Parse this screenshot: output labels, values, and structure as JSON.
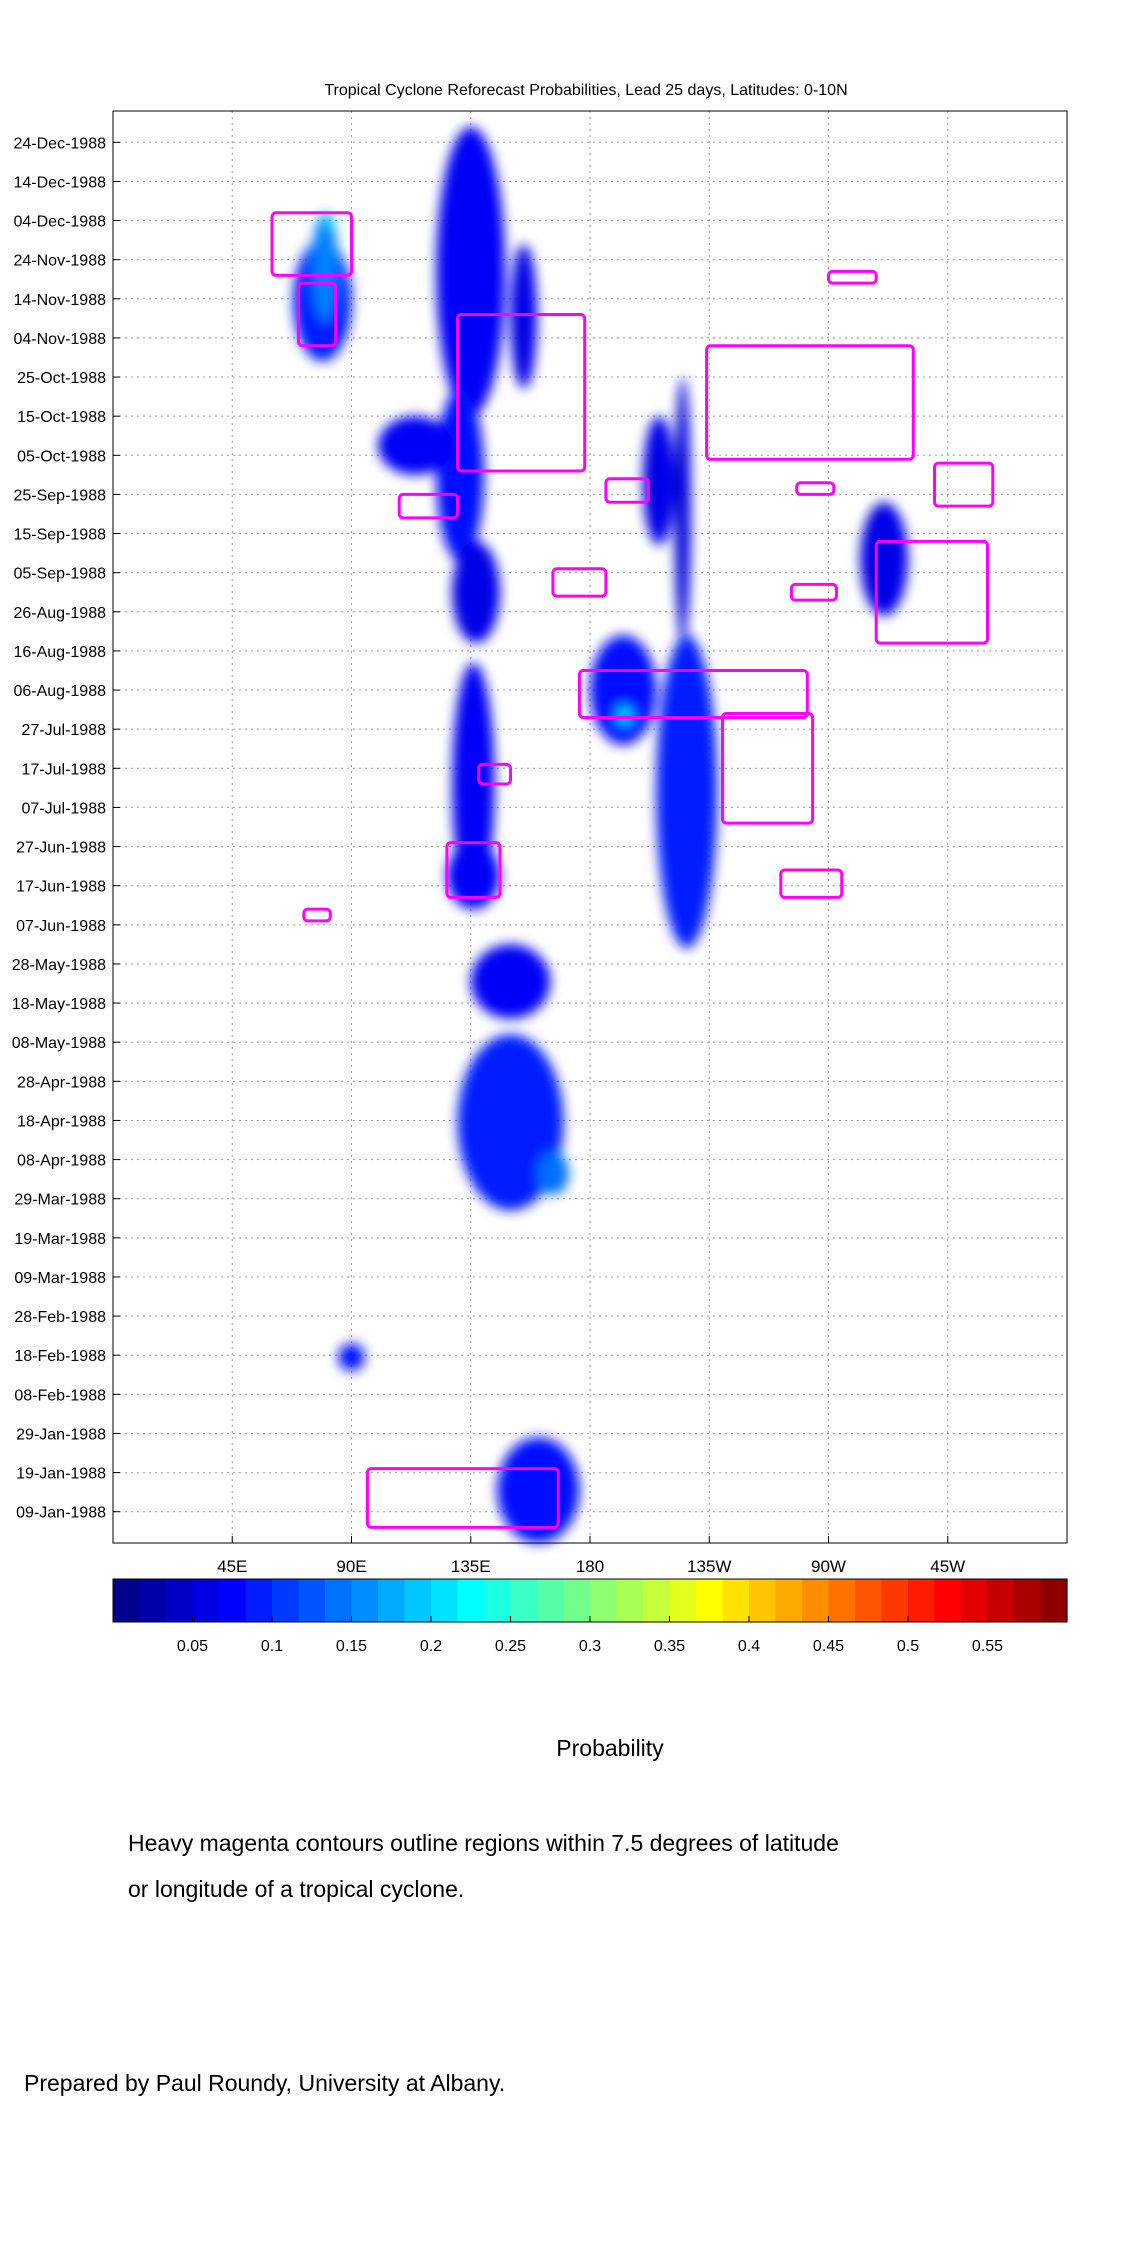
{
  "title": "Tropical Cyclone Reforecast Probabilities, Lead 25 days, Latitudes: 0-10N",
  "colorbar_label": "Probability",
  "caption_lines": [
    "Heavy magenta contours outline regions within 7.5 degrees of latitude",
    "or longitude of a tropical cyclone."
  ],
  "credit": "Prepared by Paul Roundy, University at Albany.",
  "colors": {
    "contour": "#ff00ff",
    "background": "#ffffff"
  },
  "chart_data": {
    "type": "heatmap",
    "title": "Tropical Cyclone Reforecast Probabilities, Lead 25 days, Latitudes: 0-10N",
    "xlabel": "",
    "ylabel": "",
    "x_axis": {
      "unit": "degrees longitude east",
      "range": [
        0,
        360
      ],
      "direction": "increasing east"
    },
    "y_axis": {
      "unit": "date",
      "range": [
        "1988-01-01",
        "1989-01-01"
      ],
      "direction": "later dates at top"
    },
    "x_ticks": [
      {
        "lon": 45,
        "label": "45E"
      },
      {
        "lon": 90,
        "label": "90E"
      },
      {
        "lon": 135,
        "label": "135E"
      },
      {
        "lon": 180,
        "label": "180"
      },
      {
        "lon": 225,
        "label": "135W"
      },
      {
        "lon": 270,
        "label": "90W"
      },
      {
        "lon": 315,
        "label": "45W"
      }
    ],
    "y_ticks": [
      {
        "date": "1988-12-24",
        "label": "24-Dec-1988"
      },
      {
        "date": "1988-12-14",
        "label": "14-Dec-1988"
      },
      {
        "date": "1988-12-04",
        "label": "04-Dec-1988"
      },
      {
        "date": "1988-11-24",
        "label": "24-Nov-1988"
      },
      {
        "date": "1988-11-14",
        "label": "14-Nov-1988"
      },
      {
        "date": "1988-11-04",
        "label": "04-Nov-1988"
      },
      {
        "date": "1988-10-25",
        "label": "25-Oct-1988"
      },
      {
        "date": "1988-10-15",
        "label": "15-Oct-1988"
      },
      {
        "date": "1988-10-05",
        "label": "05-Oct-1988"
      },
      {
        "date": "1988-09-25",
        "label": "25-Sep-1988"
      },
      {
        "date": "1988-09-15",
        "label": "15-Sep-1988"
      },
      {
        "date": "1988-09-05",
        "label": "05-Sep-1988"
      },
      {
        "date": "1988-08-26",
        "label": "26-Aug-1988"
      },
      {
        "date": "1988-08-16",
        "label": "16-Aug-1988"
      },
      {
        "date": "1988-08-06",
        "label": "06-Aug-1988"
      },
      {
        "date": "1988-07-27",
        "label": "27-Jul-1988"
      },
      {
        "date": "1988-07-17",
        "label": "17-Jul-1988"
      },
      {
        "date": "1988-07-07",
        "label": "07-Jul-1988"
      },
      {
        "date": "1988-06-27",
        "label": "27-Jun-1988"
      },
      {
        "date": "1988-06-17",
        "label": "17-Jun-1988"
      },
      {
        "date": "1988-06-07",
        "label": "07-Jun-1988"
      },
      {
        "date": "1988-05-28",
        "label": "28-May-1988"
      },
      {
        "date": "1988-05-18",
        "label": "18-May-1988"
      },
      {
        "date": "1988-05-08",
        "label": "08-May-1988"
      },
      {
        "date": "1988-04-28",
        "label": "28-Apr-1988"
      },
      {
        "date": "1988-04-18",
        "label": "18-Apr-1988"
      },
      {
        "date": "1988-04-08",
        "label": "08-Apr-1988"
      },
      {
        "date": "1988-03-29",
        "label": "29-Mar-1988"
      },
      {
        "date": "1988-03-19",
        "label": "19-Mar-1988"
      },
      {
        "date": "1988-03-09",
        "label": "09-Mar-1988"
      },
      {
        "date": "1988-02-28",
        "label": "28-Feb-1988"
      },
      {
        "date": "1988-02-18",
        "label": "18-Feb-1988"
      },
      {
        "date": "1988-02-08",
        "label": "08-Feb-1988"
      },
      {
        "date": "1988-01-29",
        "label": "29-Jan-1988"
      },
      {
        "date": "1988-01-19",
        "label": "19-Jan-1988"
      },
      {
        "date": "1988-01-09",
        "label": "09-Jan-1988"
      }
    ],
    "grid": true,
    "colorbar": {
      "label": "Probability",
      "range": [
        0,
        0.6
      ],
      "steps": 36,
      "ticks": [
        0.05,
        0.1,
        0.15,
        0.2,
        0.25,
        0.3,
        0.35,
        0.4,
        0.45,
        0.5,
        0.55
      ],
      "tick_labels": [
        "0.05",
        "0.1",
        "0.15",
        "0.2",
        "0.25",
        "0.3",
        "0.35",
        "0.4",
        "0.45",
        "0.5",
        "0.55"
      ],
      "colormap": "jet"
    },
    "probability_regions": [
      {
        "lon": [
          122,
          148
        ],
        "date": [
          "1988-10-15",
          "1988-12-28"
        ],
        "value": 0.07
      },
      {
        "lon": [
          150,
          160
        ],
        "date": [
          "1988-10-22",
          "1988-11-28"
        ],
        "value": 0.06
      },
      {
        "lon": [
          68,
          90
        ],
        "date": [
          "1988-10-29",
          "1988-11-29"
        ],
        "value": 0.09
      },
      {
        "lon": [
          75,
          85
        ],
        "date": [
          "1988-11-08",
          "1988-12-06"
        ],
        "value": 0.15
      },
      {
        "lon": [
          80,
          84
        ],
        "date": [
          "1988-12-02",
          "1988-12-05"
        ],
        "value": 0.2
      },
      {
        "lon": [
          122,
          140
        ],
        "date": [
          "1988-09-08",
          "1988-10-22"
        ],
        "value": 0.08
      },
      {
        "lon": [
          100,
          128
        ],
        "date": [
          "1988-09-30",
          "1988-10-15"
        ],
        "value": 0.07
      },
      {
        "lon": [
          200,
          212
        ],
        "date": [
          "1988-09-12",
          "1988-10-15"
        ],
        "value": 0.06
      },
      {
        "lon": [
          212,
          218
        ],
        "date": [
          "1988-08-18",
          "1988-10-25"
        ],
        "value": 0.05
      },
      {
        "lon": [
          282,
          300
        ],
        "date": [
          "1988-08-25",
          "1988-09-23"
        ],
        "value": 0.06
      },
      {
        "lon": [
          180,
          205
        ],
        "date": [
          "1988-07-23",
          "1988-08-20"
        ],
        "value": 0.08
      },
      {
        "lon": [
          205,
          228
        ],
        "date": [
          "1988-06-01",
          "1988-08-20"
        ],
        "value": 0.09
      },
      {
        "lon": [
          190,
          196
        ],
        "date": [
          "1988-07-28",
          "1988-08-02"
        ],
        "value": 0.2
      },
      {
        "lon": [
          128,
          146
        ],
        "date": [
          "1988-08-18",
          "1988-09-13"
        ],
        "value": 0.06
      },
      {
        "lon": [
          128,
          144
        ],
        "date": [
          "1988-06-12",
          "1988-08-13"
        ],
        "value": 0.07
      },
      {
        "lon": [
          126,
          146
        ],
        "date": [
          "1988-06-11",
          "1988-06-28"
        ],
        "value": 0.07
      },
      {
        "lon": [
          135,
          165
        ],
        "date": [
          "1988-05-14",
          "1988-06-02"
        ],
        "value": 0.07
      },
      {
        "lon": [
          130,
          170
        ],
        "date": [
          "1988-03-26",
          "1988-05-10"
        ],
        "value": 0.09
      },
      {
        "lon": [
          160,
          172
        ],
        "date": [
          "1988-03-30",
          "1988-04-10"
        ],
        "value": 0.14
      },
      {
        "lon": [
          145,
          176
        ],
        "date": [
          "1988-01-01",
          "1988-01-28"
        ],
        "value": 0.08
      },
      {
        "lon": [
          85,
          95
        ],
        "date": [
          "1988-02-14",
          "1988-02-21"
        ],
        "value": 0.08
      }
    ],
    "cyclone_contours": [
      {
        "lon": [
          96,
          168
        ],
        "date": [
          "1988-01-05",
          "1988-01-20"
        ],
        "note": "elongated diagonal contour"
      },
      {
        "lon": [
          126,
          146
        ],
        "date": [
          "1988-06-14",
          "1988-06-28"
        ]
      },
      {
        "lon": [
          138,
          150
        ],
        "date": [
          "1988-07-13",
          "1988-07-18"
        ]
      },
      {
        "lon": [
          72,
          82
        ],
        "date": [
          "1988-06-08",
          "1988-06-11"
        ]
      },
      {
        "lon": [
          176,
          262
        ],
        "date": [
          "1988-07-30",
          "1988-08-11"
        ]
      },
      {
        "lon": [
          230,
          264
        ],
        "date": [
          "1988-07-03",
          "1988-07-31"
        ]
      },
      {
        "lon": [
          252,
          275
        ],
        "date": [
          "1988-06-14",
          "1988-06-21"
        ]
      },
      {
        "lon": [
          166,
          186
        ],
        "date": [
          "1988-08-30",
          "1988-09-06"
        ]
      },
      {
        "lon": [
          256,
          273
        ],
        "date": [
          "1988-08-29",
          "1988-09-02"
        ]
      },
      {
        "lon": [
          258,
          272
        ],
        "date": [
          "1988-09-25",
          "1988-09-28"
        ]
      },
      {
        "lon": [
          186,
          202
        ],
        "date": [
          "1988-09-23",
          "1988-09-29"
        ]
      },
      {
        "lon": [
          288,
          330
        ],
        "date": [
          "1988-08-18",
          "1988-09-13"
        ]
      },
      {
        "lon": [
          310,
          332
        ],
        "date": [
          "1988-09-22",
          "1988-10-03"
        ]
      },
      {
        "lon": [
          224,
          302
        ],
        "date": [
          "1988-10-04",
          "1988-11-02"
        ]
      },
      {
        "lon": [
          270,
          288
        ],
        "date": [
          "1988-11-18",
          "1988-11-21"
        ]
      },
      {
        "lon": [
          108,
          130
        ],
        "date": [
          "1988-09-19",
          "1988-09-25"
        ]
      },
      {
        "lon": [
          130,
          178
        ],
        "date": [
          "1988-10-01",
          "1988-11-10"
        ]
      },
      {
        "lon": [
          70,
          84
        ],
        "date": [
          "1988-11-02",
          "1988-11-18"
        ]
      },
      {
        "lon": [
          60,
          90
        ],
        "date": [
          "1988-11-20",
          "1988-12-06"
        ]
      }
    ]
  }
}
